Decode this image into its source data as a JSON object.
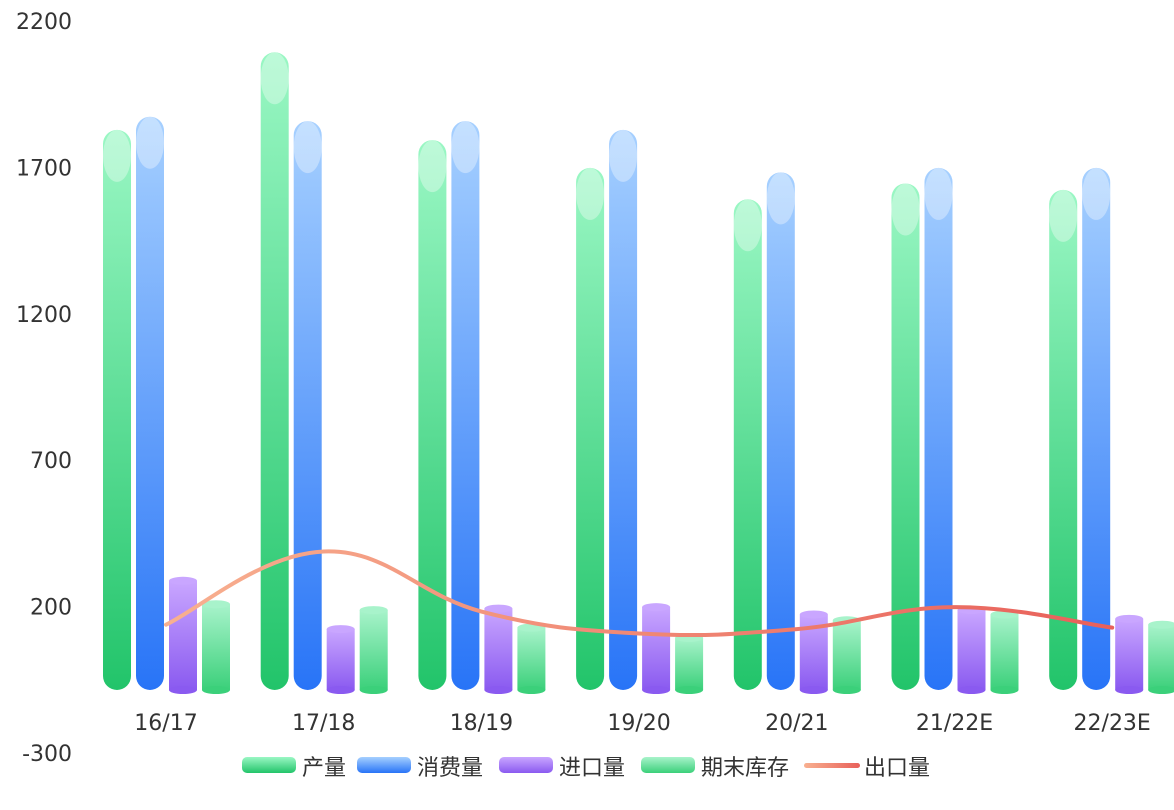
{
  "chart_data": {
    "type": "bar",
    "title": "",
    "xlabel": "",
    "ylabel": "",
    "ylim": [
      -300,
      2200
    ],
    "yticks": [
      2200,
      1700,
      1200,
      700,
      200,
      -300
    ],
    "categories": [
      "16/17",
      "17/18",
      "18/19",
      "19/20",
      "20/21",
      "21/22E",
      "22/23E"
    ],
    "series": [
      {
        "name": "产量",
        "kind": "bar",
        "values": [
          1835,
          2100,
          1800,
          1705,
          1598,
          1652,
          1630
        ]
      },
      {
        "name": "消费量",
        "kind": "bar",
        "values": [
          1880,
          1865,
          1865,
          1835,
          1690,
          1705,
          1705
        ]
      },
      {
        "name": "进口量",
        "kind": "bar",
        "values": [
          295,
          130,
          200,
          205,
          180,
          195,
          165
        ]
      },
      {
        "name": "期末库存",
        "kind": "bar",
        "values": [
          215,
          195,
          135,
          100,
          160,
          180,
          145
        ]
      },
      {
        "name": "出口量",
        "kind": "line",
        "values": [
          145,
          395,
          190,
          115,
          130,
          205,
          135
        ]
      }
    ],
    "legend_position": "bottom",
    "grid": false,
    "colors": {
      "产量": [
        "#9af7c4",
        "#22c46a"
      ],
      "消费量": [
        "#a6d0ff",
        "#2874f7"
      ],
      "进口量": [
        "#c9a6ff",
        "#8a5af0"
      ],
      "期末库存": [
        "#a8f3cb",
        "#3bd07a"
      ],
      "出口量": [
        "#f8b090",
        "#e8605a"
      ]
    }
  }
}
